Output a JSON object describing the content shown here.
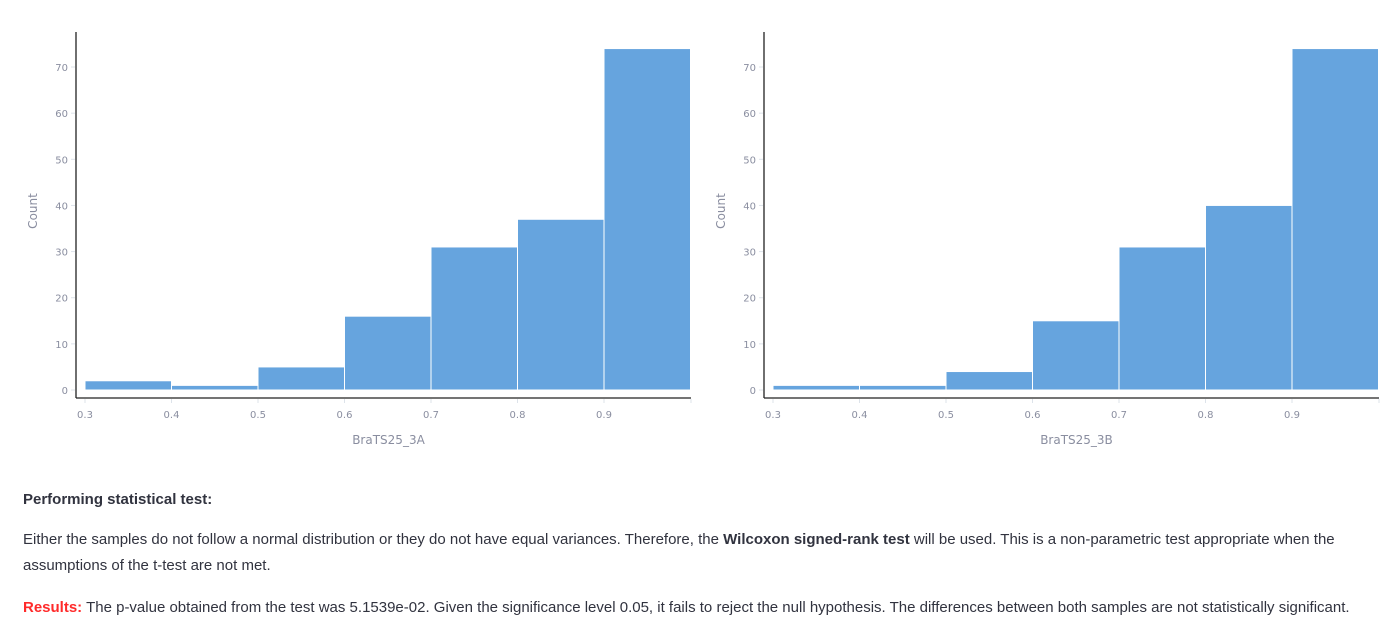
{
  "chart_data": [
    {
      "type": "bar",
      "subtype": "histogram",
      "title": "",
      "xlabel": "BraTS25_3A",
      "ylabel": "Count",
      "bin_edges": [
        0.3,
        0.4,
        0.5,
        0.6,
        0.7,
        0.8,
        0.9,
        1.0
      ],
      "categories": [
        "0.3-0.4",
        "0.4-0.5",
        "0.5-0.6",
        "0.6-0.7",
        "0.7-0.8",
        "0.8-0.9",
        "0.9-1.0"
      ],
      "values": [
        2,
        1,
        5,
        16,
        31,
        37,
        74
      ],
      "x_ticks": [
        "0.3",
        "0.4",
        "0.5",
        "0.6",
        "0.7",
        "0.8",
        "0.9"
      ],
      "y_ticks": [
        "0",
        "10",
        "20",
        "30",
        "40",
        "50",
        "60",
        "70"
      ],
      "xlim": [
        0.29,
        1.0
      ],
      "ylim": [
        0,
        78
      ],
      "grid": false,
      "bar_color": "#66a4de"
    },
    {
      "type": "bar",
      "subtype": "histogram",
      "title": "",
      "xlabel": "BraTS25_3B",
      "ylabel": "Count",
      "bin_edges": [
        0.3,
        0.4,
        0.5,
        0.6,
        0.7,
        0.8,
        0.9,
        1.0
      ],
      "categories": [
        "0.3-0.4",
        "0.4-0.5",
        "0.5-0.6",
        "0.6-0.7",
        "0.7-0.8",
        "0.8-0.9",
        "0.9-1.0"
      ],
      "values": [
        1,
        1,
        4,
        15,
        31,
        40,
        74
      ],
      "x_ticks": [
        "0.3",
        "0.4",
        "0.5",
        "0.6",
        "0.7",
        "0.8",
        "0.9"
      ],
      "y_ticks": [
        "0",
        "10",
        "20",
        "30",
        "40",
        "50",
        "60",
        "70"
      ],
      "xlim": [
        0.29,
        1.0
      ],
      "ylim": [
        0,
        78
      ],
      "grid": false,
      "bar_color": "#66a4de"
    }
  ],
  "text": {
    "heading": "Performing statistical test:",
    "para_pre": "Either the samples do not follow a normal distribution or they do not have equal variances. Therefore, the ",
    "para_bold": "Wilcoxon signed-rank test",
    "para_post": " will be used. This is a non-parametric test appropriate when the assumptions of the t-test are not met.",
    "result_label": "Results:",
    "result_text": " The p-value obtained from the test was 5.1539e-02. Given the significance level 0.05, it fails to reject the null hypothesis. The differences between both samples are not statistically significant.",
    "result_color": "#ff2b2b"
  }
}
